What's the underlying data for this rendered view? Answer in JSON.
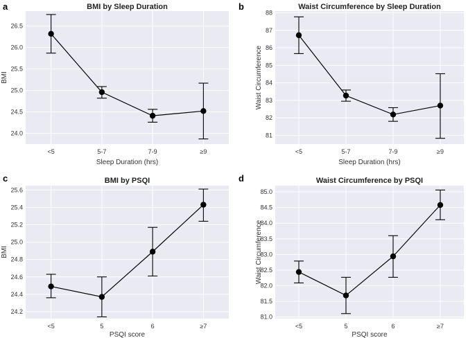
{
  "figure": {
    "background": "#ffffff",
    "plot_background": "#eaeaf2",
    "line_color": "#000000"
  },
  "chart_data": [
    {
      "id": "a",
      "panel_letter": "a",
      "type": "line",
      "title": "BMI by Sleep Duration",
      "xlabel": "Sleep Duration (hrs)",
      "ylabel": "BMI",
      "categories": [
        "<5",
        "5-7",
        "7-9",
        "≥9"
      ],
      "values": [
        26.32,
        24.96,
        24.41,
        24.52
      ],
      "err_low": [
        25.87,
        24.82,
        24.26,
        23.87
      ],
      "err_high": [
        26.77,
        25.09,
        24.56,
        25.17
      ],
      "ylim": [
        23.75,
        26.85
      ],
      "yticks": [
        24.0,
        24.5,
        25.0,
        25.5,
        26.0,
        26.5
      ],
      "ytick_labels": [
        "24.0",
        "24.5",
        "25.0",
        "25.5",
        "26.0",
        "26.5"
      ],
      "grid": true
    },
    {
      "id": "b",
      "panel_letter": "b",
      "type": "line",
      "title": "Waist Circumference by Sleep Duration",
      "xlabel": "Sleep Duration (hrs)",
      "ylabel": "Waist Circumference",
      "categories": [
        "<5",
        "5-7",
        "7-9",
        "≥9"
      ],
      "values": [
        86.72,
        83.27,
        82.19,
        82.7
      ],
      "err_low": [
        85.67,
        82.95,
        81.8,
        80.83
      ],
      "err_high": [
        87.77,
        83.59,
        82.58,
        84.52
      ],
      "ylim": [
        80.5,
        88.1
      ],
      "yticks": [
        81,
        82,
        83,
        84,
        85,
        86,
        87,
        88
      ],
      "ytick_labels": [
        "81",
        "82",
        "83",
        "84",
        "85",
        "86",
        "87",
        "88"
      ],
      "grid": true
    },
    {
      "id": "c",
      "panel_letter": "c",
      "type": "line",
      "title": "BMI by PSQI",
      "xlabel": "PSQI score",
      "ylabel": "BMI",
      "categories": [
        "<5",
        "5",
        "6",
        "≥7"
      ],
      "values": [
        24.49,
        24.37,
        24.89,
        25.43
      ],
      "err_low": [
        24.36,
        24.14,
        24.61,
        25.24
      ],
      "err_high": [
        24.63,
        24.6,
        25.17,
        25.61
      ],
      "ylim": [
        24.12,
        25.65
      ],
      "yticks": [
        24.2,
        24.4,
        24.6,
        24.8,
        25.0,
        25.2,
        25.4,
        25.6
      ],
      "ytick_labels": [
        "24.2",
        "24.4",
        "24.6",
        "24.8",
        "25.0",
        "25.2",
        "25.4",
        "25.6"
      ],
      "grid": true
    },
    {
      "id": "d",
      "panel_letter": "d",
      "type": "line",
      "title": "Waist Circumference by PSQI",
      "xlabel": "PSQI score",
      "ylabel": "Waist Circumference",
      "categories": [
        "<5",
        "5",
        "6",
        "≥7"
      ],
      "values": [
        82.44,
        81.69,
        82.94,
        84.58
      ],
      "err_low": [
        82.09,
        81.11,
        82.27,
        84.11
      ],
      "err_high": [
        82.79,
        82.27,
        83.6,
        85.06
      ],
      "ylim": [
        80.95,
        85.2
      ],
      "yticks": [
        81.0,
        81.5,
        82.0,
        82.5,
        83.0,
        83.5,
        84.0,
        84.5,
        85.0
      ],
      "ytick_labels": [
        "81.0",
        "81.5",
        "82.0",
        "82.5",
        "83.0",
        "83.5",
        "84.0",
        "84.5",
        "85.0"
      ],
      "grid": true
    }
  ]
}
